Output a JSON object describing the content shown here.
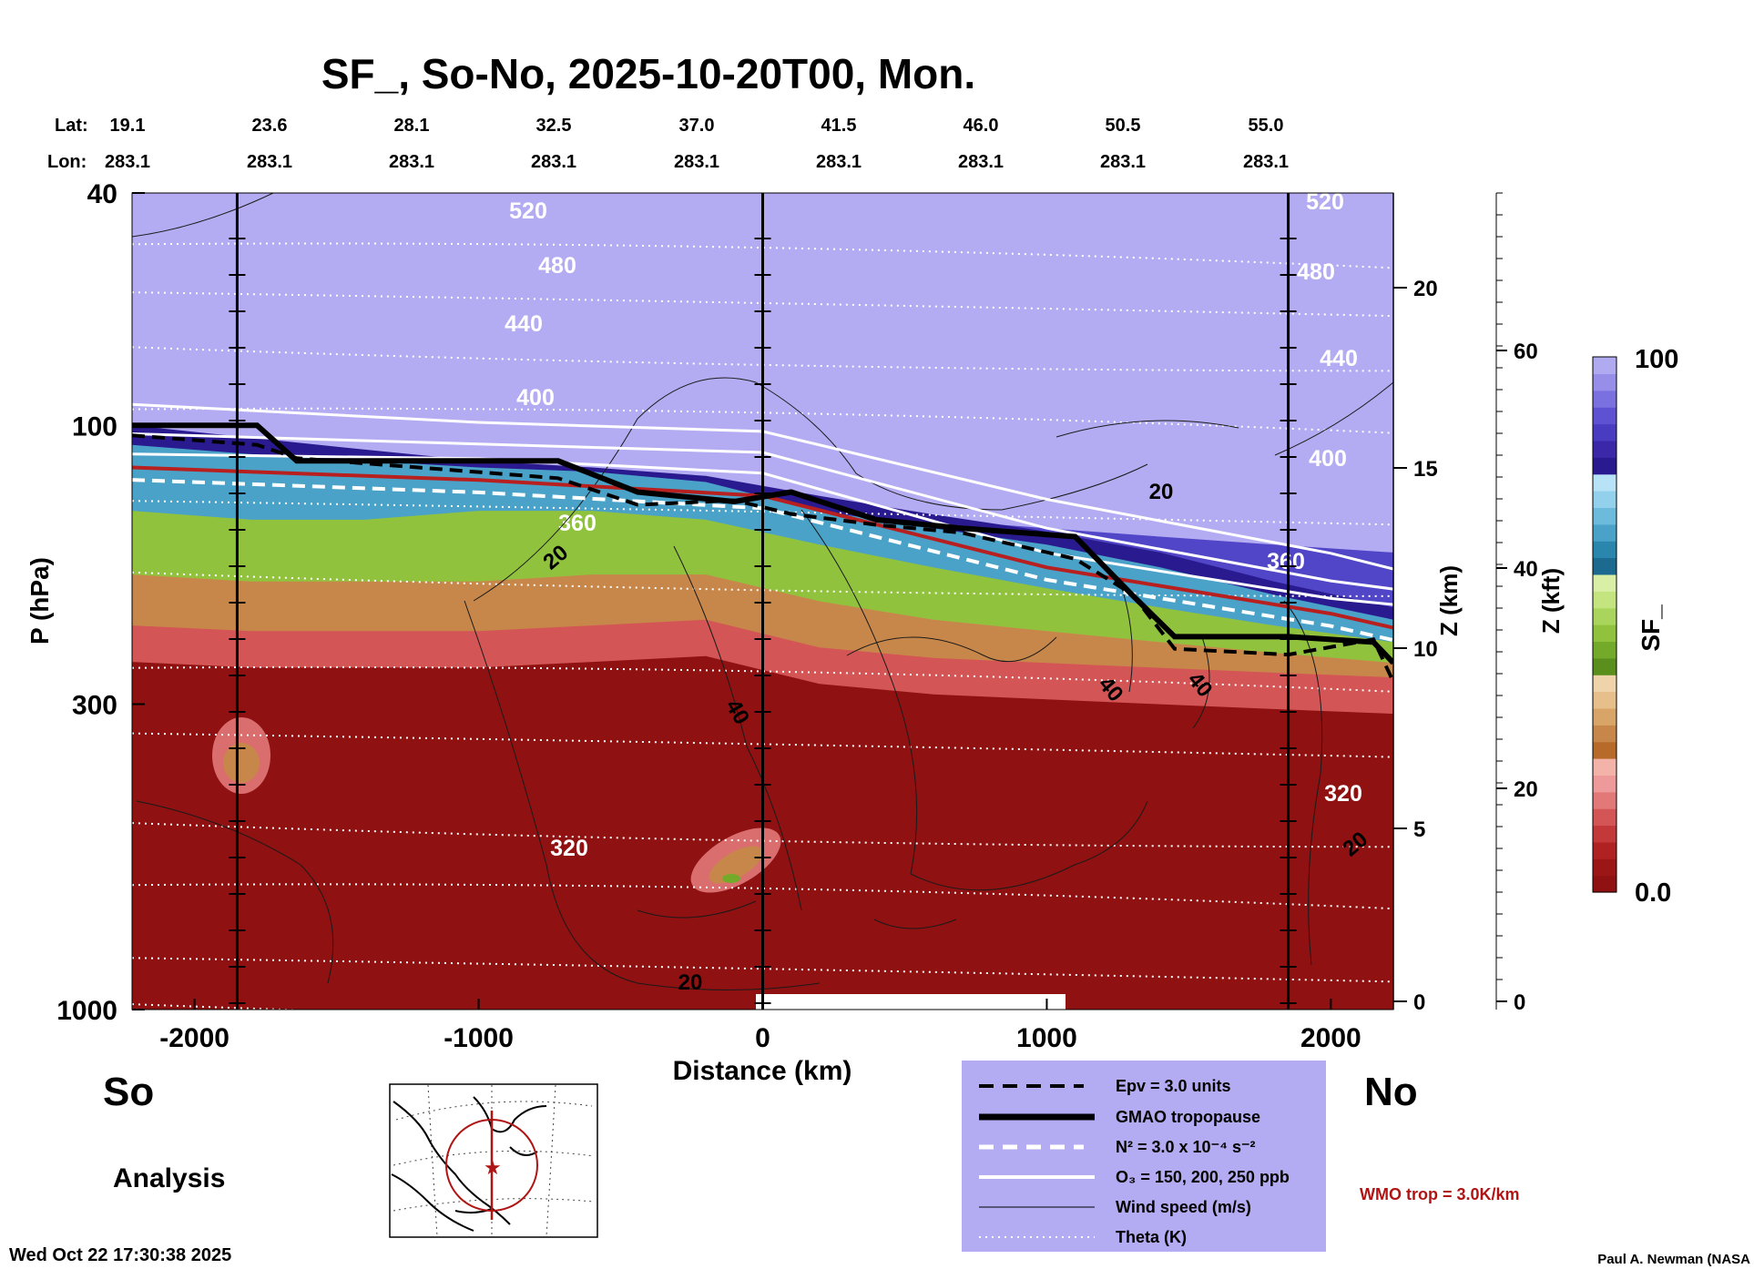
{
  "title": "SF_, So-No, 2025-10-20T00, Mon.",
  "lat_label": "Lat:",
  "lon_label": "Lon:",
  "lats": [
    "19.1",
    "23.6",
    "28.1",
    "32.5",
    "37.0",
    "41.5",
    "46.0",
    "50.5",
    "55.0"
  ],
  "lons": [
    "283.1",
    "283.1",
    "283.1",
    "283.1",
    "283.1",
    "283.1",
    "283.1",
    "283.1",
    "283.1"
  ],
  "left_end": "So",
  "right_end": "No",
  "analysis_label": "Analysis",
  "timestamp": "Wed Oct 22 17:30:38 2025",
  "credit": "Paul A. Newman (NASA",
  "wmo_trop": "WMO trop = 3.0K/km",
  "legend": {
    "epv": "Epv = 3.0 units",
    "gmao": "GMAO tropopause",
    "n2": "N² = 3.0 x 10⁻⁴ s⁻²",
    "o3": "O₃ = 150, 200, 250 ppb",
    "wind": "Wind speed (m/s)",
    "theta": "Theta (K)"
  },
  "colorbar": {
    "label": "SF_",
    "max_label": "100",
    "min_label": "0.0",
    "colors": [
      "#8f1111",
      "#9d1616",
      "#b02222",
      "#c33838",
      "#d45555",
      "#e27878",
      "#ee9a9a",
      "#f3b3a8",
      "#b76a2a",
      "#c8874a",
      "#d9a468",
      "#e7bf8a",
      "#efd3aa",
      "#5a8f1d",
      "#74aa2a",
      "#91c23e",
      "#aad55c",
      "#c4e47f",
      "#d9efa6",
      "#1c6a8f",
      "#2a86ad",
      "#4aa2c8",
      "#6cbadc",
      "#92d0ec",
      "#b8e2f6",
      "#2a1a8f",
      "#3a28a8",
      "#4a3cc0",
      "#5e52d2",
      "#7a70e0",
      "#968ee8",
      "#b0aaf0"
    ]
  },
  "chart_data": {
    "type": "heatmap",
    "title": "SF_, So-No, 2025-10-20T00, Mon.",
    "xlabel": "Distance (km)",
    "ylabel": "P (hPa)",
    "y2label": "Z (km)",
    "y3label": "Z (kft)",
    "xlim": [
      -2220,
      2220
    ],
    "ylim": [
      1000,
      40
    ],
    "y_scale": "log",
    "x_ticks": [
      -2000,
      -1000,
      0,
      1000,
      2000
    ],
    "y_ticks": [
      40,
      100,
      300,
      1000
    ],
    "z_km_ticks": [
      0,
      5,
      10,
      15,
      20
    ],
    "z_kft_ticks": [
      0,
      20,
      40,
      60
    ],
    "colorbar_range": [
      0.0,
      100
    ],
    "vertical_lines_km": [
      -1850,
      0,
      1850
    ],
    "theta_labels": [
      "520",
      "480",
      "440",
      "400",
      "360",
      "320"
    ],
    "wind_labels": [
      "20",
      "40"
    ],
    "field_band_levels_hPa": {
      "x_km": [
        -2220,
        -1800,
        -1400,
        -1000,
        -600,
        -200,
        200,
        600,
        1000,
        1400,
        1800,
        2220
      ],
      "purple_top": [
        118,
        118,
        120,
        122,
        126,
        132,
        138,
        145,
        150,
        155,
        160,
        165
      ],
      "dark_blue_top": [
        100,
        105,
        110,
        115,
        118,
        122,
        132,
        142,
        152,
        165,
        185,
        205
      ],
      "light_blue_top": [
        108,
        112,
        115,
        118,
        120,
        125,
        140,
        150,
        160,
        175,
        195,
        215
      ],
      "green_top": [
        140,
        145,
        145,
        140,
        140,
        145,
        160,
        175,
        190,
        205,
        220,
        235
      ],
      "tan_top": [
        180,
        185,
        185,
        185,
        180,
        180,
        200,
        215,
        225,
        235,
        245,
        255
      ],
      "red_top": [
        220,
        225,
        225,
        225,
        220,
        215,
        240,
        250,
        255,
        260,
        265,
        270
      ]
    },
    "gmao_tropopause_hPa": {
      "x_km": [
        -2220,
        -1780,
        -1640,
        -720,
        -440,
        -100,
        100,
        400,
        700,
        1100,
        1300,
        1450,
        1850,
        2150,
        2220
      ],
      "p": [
        100,
        100,
        115,
        115,
        130,
        135,
        130,
        145,
        150,
        155,
        195,
        230,
        230,
        235,
        255
      ]
    },
    "wmo_trop_hPa": {
      "x_km": [
        -2220,
        -1000,
        0,
        1000,
        2000,
        2220
      ],
      "p": [
        118,
        124,
        132,
        175,
        210,
        222
      ]
    }
  }
}
